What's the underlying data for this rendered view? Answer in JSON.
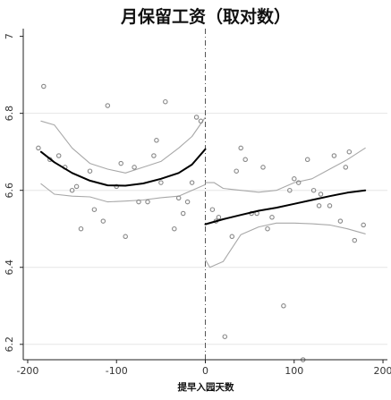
{
  "chart_data": {
    "type": "scatter",
    "title": "月保留工资（取对数）",
    "xlabel": "提早入园天数",
    "ylabel": "",
    "xlim": [
      -205,
      205
    ],
    "ylim": [
      6.16,
      7.02
    ],
    "xticks": [
      -200,
      -100,
      0,
      100,
      200
    ],
    "yticks": [
      6.2,
      6.4,
      6.6,
      6.8,
      7
    ],
    "xtick_labels": [
      "-200",
      "-100",
      "0",
      "100",
      "200"
    ],
    "ytick_labels": [
      "6.2",
      "6.4",
      "6.6",
      "6.8",
      "7"
    ],
    "grid": "horizontal",
    "cutoff_x": 0,
    "colors": {
      "points": "#888888",
      "fit": "#000000",
      "ci": "#a8a8a8",
      "grid": "#e6e6e6"
    },
    "scatter": [
      [
        -182,
        6.87
      ],
      [
        -188,
        6.71
      ],
      [
        -175,
        6.68
      ],
      [
        -165,
        6.69
      ],
      [
        -158,
        6.66
      ],
      [
        -150,
        6.6
      ],
      [
        -145,
        6.61
      ],
      [
        -140,
        6.5
      ],
      [
        -130,
        6.65
      ],
      [
        -125,
        6.55
      ],
      [
        -115,
        6.52
      ],
      [
        -110,
        6.82
      ],
      [
        -100,
        6.61
      ],
      [
        -95,
        6.67
      ],
      [
        -90,
        6.48
      ],
      [
        -80,
        6.66
      ],
      [
        -75,
        6.57
      ],
      [
        -65,
        6.57
      ],
      [
        -58,
        6.69
      ],
      [
        -55,
        6.73
      ],
      [
        -50,
        6.62
      ],
      [
        -45,
        6.83
      ],
      [
        -35,
        6.5
      ],
      [
        -30,
        6.58
      ],
      [
        -25,
        6.54
      ],
      [
        -20,
        6.57
      ],
      [
        -15,
        6.62
      ],
      [
        -10,
        6.79
      ],
      [
        -5,
        6.78
      ],
      [
        8,
        6.55
      ],
      [
        12,
        6.52
      ],
      [
        15,
        6.53
      ],
      [
        22,
        6.22
      ],
      [
        30,
        6.48
      ],
      [
        35,
        6.65
      ],
      [
        40,
        6.71
      ],
      [
        45,
        6.68
      ],
      [
        52,
        6.54
      ],
      [
        58,
        6.54
      ],
      [
        65,
        6.66
      ],
      [
        70,
        6.5
      ],
      [
        75,
        6.53
      ],
      [
        88,
        6.3
      ],
      [
        95,
        6.6
      ],
      [
        100,
        6.63
      ],
      [
        105,
        6.62
      ],
      [
        110,
        6.16
      ],
      [
        115,
        6.68
      ],
      [
        122,
        6.6
      ],
      [
        128,
        6.56
      ],
      [
        130,
        6.59
      ],
      [
        140,
        6.56
      ],
      [
        145,
        6.69
      ],
      [
        152,
        6.52
      ],
      [
        158,
        6.66
      ],
      [
        162,
        6.7
      ],
      [
        168,
        6.47
      ],
      [
        178,
        6.51
      ]
    ],
    "series": [
      {
        "role": "fit-left",
        "x": [
          -185,
          -170,
          -150,
          -130,
          -110,
          -90,
          -70,
          -50,
          -30,
          -15,
          0
        ],
        "y": [
          6.7,
          6.673,
          6.645,
          6.625,
          6.613,
          6.612,
          6.618,
          6.63,
          6.645,
          6.667,
          6.707
        ]
      },
      {
        "role": "ci-upper-left",
        "x": [
          -185,
          -170,
          -150,
          -130,
          -110,
          -90,
          -70,
          -50,
          -30,
          -15,
          0
        ],
        "y": [
          6.78,
          6.77,
          6.71,
          6.67,
          6.655,
          6.645,
          6.66,
          6.675,
          6.71,
          6.74,
          6.79
        ]
      },
      {
        "role": "ci-lower-left",
        "x": [
          -185,
          -170,
          -150,
          -130,
          -110,
          -90,
          -70,
          -50,
          -30,
          -15,
          0
        ],
        "y": [
          6.617,
          6.59,
          6.585,
          6.583,
          6.57,
          6.572,
          6.575,
          6.581,
          6.585,
          6.6,
          6.615
        ]
      },
      {
        "role": "fit-right",
        "x": [
          0,
          20,
          40,
          60,
          80,
          100,
          120,
          140,
          160,
          180
        ],
        "y": [
          6.512,
          6.525,
          6.536,
          6.547,
          6.555,
          6.565,
          6.575,
          6.585,
          6.594,
          6.6
        ]
      },
      {
        "role": "ci-upper-right",
        "x": [
          0,
          10,
          20,
          40,
          60,
          80,
          100,
          120,
          140,
          160,
          180
        ],
        "y": [
          6.62,
          6.62,
          6.605,
          6.6,
          6.595,
          6.6,
          6.62,
          6.63,
          6.655,
          6.68,
          6.71
        ]
      },
      {
        "role": "ci-lower-right",
        "x": [
          0,
          5,
          20,
          40,
          60,
          80,
          100,
          120,
          140,
          160,
          180
        ],
        "y": [
          6.42,
          6.4,
          6.415,
          6.485,
          6.505,
          6.515,
          6.515,
          6.513,
          6.51,
          6.5,
          6.487
        ]
      }
    ]
  }
}
